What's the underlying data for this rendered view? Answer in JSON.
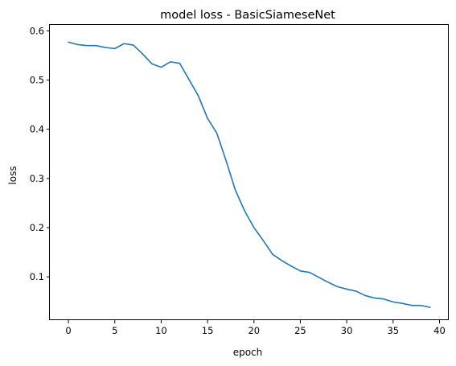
{
  "chart_data": {
    "type": "line",
    "title": "model loss - BasicSiameseNet",
    "xlabel": "epoch",
    "ylabel": "loss",
    "xlim": [
      -2,
      41
    ],
    "ylim": [
      0.012,
      0.612
    ],
    "xticks": [
      0,
      5,
      10,
      15,
      20,
      25,
      30,
      35,
      40
    ],
    "yticks": [
      0.1,
      0.2,
      0.3,
      0.4,
      0.5,
      0.6
    ],
    "grid": false,
    "legend": "none",
    "colors": {
      "line": "#1f77b4"
    },
    "series": [
      {
        "x": [
          0,
          1,
          2,
          3,
          4,
          5,
          6,
          7,
          8,
          9,
          10,
          11,
          12,
          13,
          14,
          15,
          16,
          17,
          18,
          19,
          20,
          21,
          22,
          23,
          24,
          25,
          26,
          27,
          28,
          29,
          30,
          31,
          32,
          33,
          34,
          35,
          36,
          37,
          38,
          39
        ],
        "y": [
          0.577,
          0.572,
          0.57,
          0.57,
          0.566,
          0.564,
          0.574,
          0.571,
          0.553,
          0.533,
          0.526,
          0.537,
          0.534,
          0.501,
          0.468,
          0.422,
          0.392,
          0.336,
          0.276,
          0.234,
          0.2,
          0.174,
          0.146,
          0.133,
          0.122,
          0.112,
          0.109,
          0.099,
          0.089,
          0.08,
          0.075,
          0.071,
          0.062,
          0.057,
          0.055,
          0.049,
          0.046,
          0.042,
          0.042,
          0.038
        ]
      }
    ]
  }
}
